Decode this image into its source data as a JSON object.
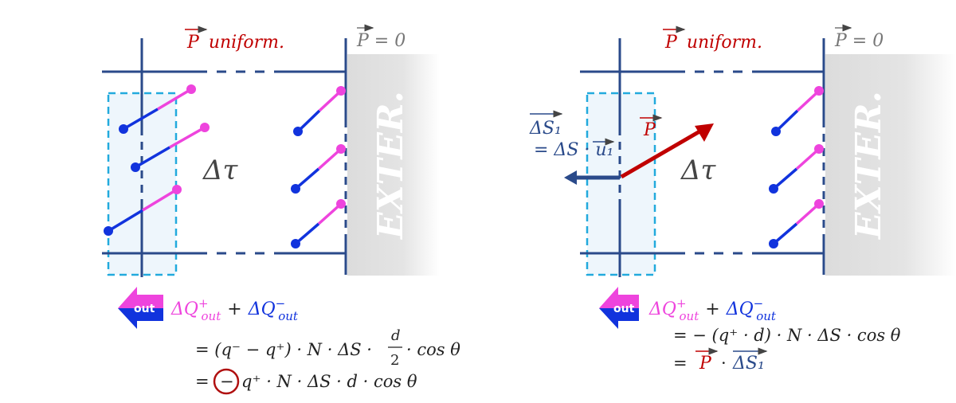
{
  "colors": {
    "frame": "#2a4a8a",
    "dashbox": "#22aadd",
    "pink": "#ee44dd",
    "blue": "#1133dd",
    "red": "#c00000",
    "grey": "#777777",
    "formula": "#222222",
    "exterior": "#dcdcdc"
  },
  "left": {
    "title_p": "P",
    "title_rest": "uniform.",
    "zero_label": "P = 0",
    "volume": "Δτ",
    "exterior": "EXTER.",
    "out_badge": "out",
    "sum_q_plus": "ΔQ",
    "sum_sup_plus": "+",
    "sum_sub": "out",
    "sum_plus": "+",
    "sum_q_minus": "ΔQ",
    "sum_sup_minus": "−",
    "line1": "= (q⁻ − q⁺) · N · ΔS ·",
    "frac_num": "d",
    "frac_den": "2",
    "line1_end": "· cos θ",
    "line2_eq": "=",
    "line2_circled": "−",
    "line2_rest": "q⁺ · N · ΔS · d · cos θ"
  },
  "right": {
    "title_p": "P",
    "title_rest": "uniform.",
    "zero_label": "P = 0",
    "volume": "Δτ",
    "exterior": "EXTER.",
    "ds1_label": "ΔS₁",
    "ds1_def": "= ΔS · u₁",
    "p_label": "P",
    "out_badge": "out",
    "sum_q_plus": "ΔQ",
    "sum_sup_plus": "+",
    "sum_sub": "out",
    "sum_plus": "+",
    "sum_q_minus": "ΔQ",
    "sum_sup_minus": "−",
    "line1": "= −  (q⁺ · d) · N · ΔS · cos θ",
    "line2_eq": "=",
    "line2_p": "P",
    "line2_dot": "·",
    "line2_ds": "ΔS₁"
  }
}
